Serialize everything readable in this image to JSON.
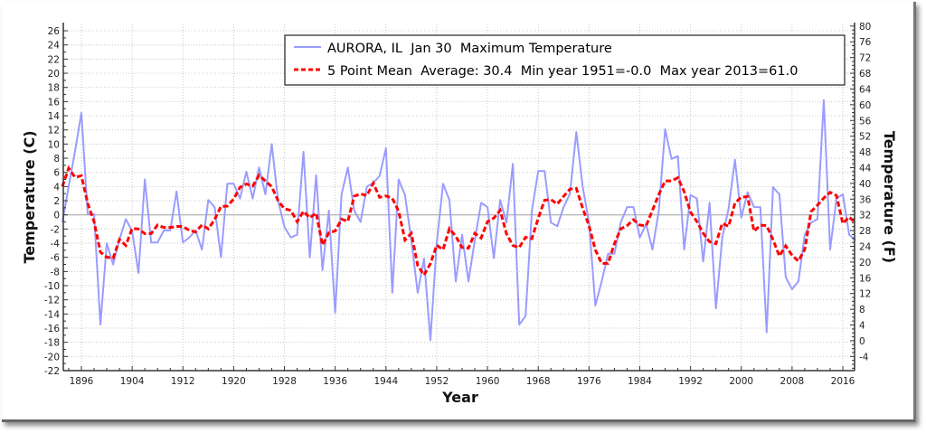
{
  "chart_data": {
    "type": "line",
    "title": "AURORA, IL  Jan 30  Maximum Temperature",
    "xlabel": "Year",
    "ylabel": "Temperature (C)",
    "ylabel_right": "Temperature (F)",
    "xlim": [
      1893.15,
      2017.85
    ],
    "ylim": [
      -22,
      26.9
    ],
    "ylim_right_F": [
      -7.6,
      80.4
    ],
    "x_ticks": [
      1896,
      1904,
      1912,
      1920,
      1928,
      1936,
      1944,
      1952,
      1960,
      1968,
      1976,
      1984,
      1992,
      2000,
      2008,
      2016
    ],
    "y_ticks": [
      -22,
      -20,
      -18,
      -16,
      -14,
      -12,
      -10,
      -8,
      -6,
      -4,
      -2,
      0,
      2,
      4,
      6,
      8,
      10,
      12,
      14,
      16,
      18,
      20,
      22,
      24,
      26
    ],
    "y_ticks_right": [
      -4,
      0,
      4,
      8,
      12,
      16,
      20,
      24,
      28,
      32,
      36,
      40,
      44,
      48,
      52,
      56,
      60,
      64,
      68,
      72,
      76,
      80
    ],
    "grid": true,
    "legend_placement": "top-right",
    "legend": [
      "AURORA, IL  Jan 30  Maximum Temperature",
      "5 Point Mean  Average: 30.4  Min year 1951=-0.0  Max year 2013=61.0"
    ],
    "colors": {
      "series": "#9a9cff",
      "mean": "#ff0000",
      "zero": "#a0a0a0",
      "grid": "#c8c8c8"
    },
    "x_start": 1893,
    "series": [
      {
        "name": "AURORA, IL  Jan 30  Maximum Temperature",
        "values": [
          -1,
          4,
          9,
          14.4,
          0.1,
          0.1,
          -15.5,
          -4,
          -7,
          -3.5,
          -0.6,
          -2.3,
          -8.2,
          5,
          -3.9,
          -3.9,
          -2.2,
          -2.2,
          3.3,
          -3.9,
          -3.2,
          -2.2,
          -4.9,
          2.1,
          1.1,
          -6,
          4.4,
          4.4,
          2.3,
          6.1,
          2.3,
          6.7,
          2.9,
          10,
          2,
          -1.7,
          -3.2,
          -2.8,
          8.9,
          -6,
          5.6,
          -7.8,
          0.6,
          -13.8,
          2.9,
          6.7,
          0.6,
          -1,
          4,
          4.5,
          5.5,
          9.4,
          -11,
          5,
          2.8,
          -3.6,
          -11,
          -6.2,
          -17.7,
          -4,
          4.4,
          2.1,
          -9.4,
          -2.8,
          -9.4,
          -3.6,
          1.7,
          1.1,
          -6.1,
          2.1,
          -1.1,
          7.2,
          -15.5,
          -14.3,
          0.6,
          6.2,
          6.2,
          -1.1,
          -1.6,
          1.1,
          3,
          11.7,
          4,
          -1.1,
          -12.8,
          -9.4,
          -5.5,
          -5.5,
          -1.1,
          1.1,
          1.1,
          -3.2,
          -1.3,
          -4.9,
          0.6,
          12.1,
          7.9,
          8.3,
          -4.9,
          2.8,
          2.3,
          -6.6,
          1.7,
          -13.2,
          -3.2,
          0.9,
          7.8,
          -0.4,
          3.2,
          1.1,
          1.1,
          -16.6,
          3.9,
          2.9,
          -8.8,
          -10.5,
          -9.4,
          -2.8,
          -1.1,
          -0.6,
          16.2,
          -4.9,
          2.3,
          2.9,
          -2.8,
          -3.6
        ]
      },
      {
        "name": "5 Point Mean",
        "window": 5
      }
    ]
  }
}
